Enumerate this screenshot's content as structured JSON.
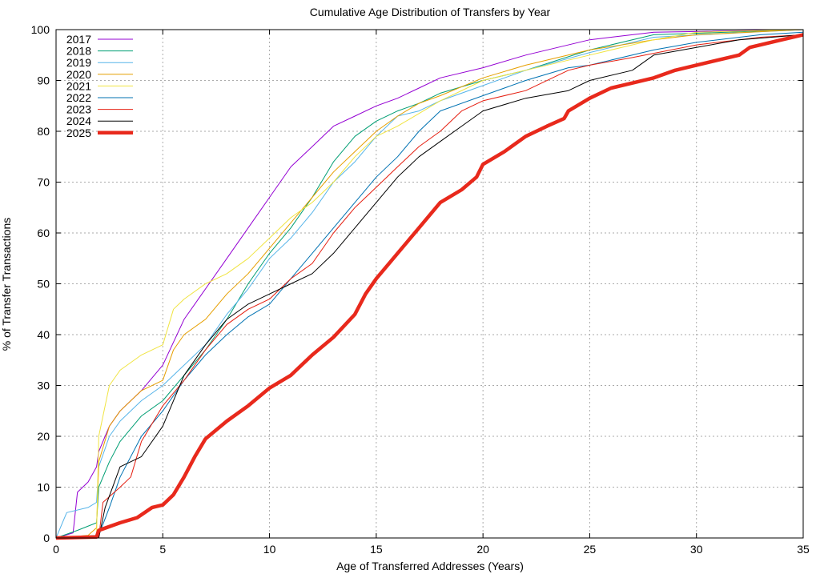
{
  "chart_data": {
    "type": "line",
    "title": "Cumulative Age Distribution of Transfers by Year",
    "xlabel": "Age of Transferred Addresses (Years)",
    "ylabel": "% of Transfer Transactions",
    "xlim": [
      0,
      35
    ],
    "ylim": [
      0,
      100
    ],
    "xticks": [
      0,
      5,
      10,
      15,
      20,
      25,
      30,
      35
    ],
    "yticks": [
      0,
      10,
      20,
      30,
      40,
      50,
      60,
      70,
      80,
      90,
      100
    ],
    "grid": true,
    "legend_position": "top-left",
    "series": [
      {
        "name": "2017",
        "color": "#9400d3",
        "width": 1,
        "x": [
          0,
          0.8,
          1.0,
          1.5,
          1.9,
          2,
          2.5,
          3,
          4,
          5,
          6,
          7,
          8,
          9,
          10,
          11,
          12,
          13,
          14,
          15,
          16,
          17,
          18,
          20,
          22,
          25,
          28,
          35
        ],
        "y": [
          0,
          1,
          9,
          11,
          14,
          17,
          22,
          25,
          29,
          34,
          43,
          49,
          55,
          61,
          67,
          73,
          77,
          81,
          83,
          85,
          86.5,
          88.5,
          90.5,
          92.5,
          95,
          98,
          99.5,
          100
        ]
      },
      {
        "name": "2018",
        "color": "#009e73",
        "width": 1,
        "x": [
          0,
          1,
          1.9,
          2,
          2.5,
          3,
          4,
          5,
          6,
          7,
          8,
          9,
          10,
          11,
          12,
          13,
          14,
          15,
          16,
          17,
          18,
          20,
          22,
          25,
          28,
          35
        ],
        "y": [
          0,
          1.5,
          3,
          10,
          15,
          19,
          24,
          27,
          32,
          37,
          43,
          50,
          56,
          61,
          67,
          74,
          79,
          82,
          84,
          85.5,
          87.5,
          90,
          92,
          96,
          99,
          100
        ]
      },
      {
        "name": "2019",
        "color": "#56b4e9",
        "width": 1,
        "x": [
          0,
          0.5,
          1.5,
          1.9,
          2,
          2.5,
          3,
          4,
          5,
          6,
          7,
          8,
          9,
          10,
          11,
          12,
          13,
          14,
          15,
          16,
          17,
          18,
          20,
          22,
          25,
          28,
          35
        ],
        "y": [
          0,
          5,
          6,
          7,
          14,
          20,
          23,
          27,
          30,
          34,
          38,
          44,
          49,
          55,
          59,
          64,
          70,
          74,
          79,
          83,
          84,
          86,
          89,
          92,
          95.5,
          98.5,
          100
        ]
      },
      {
        "name": "2020",
        "color": "#e69f00",
        "width": 1,
        "x": [
          0,
          1.5,
          1.9,
          2,
          2.5,
          3,
          4,
          5,
          5.5,
          6,
          7,
          8,
          9,
          10,
          11,
          12,
          13,
          14,
          15,
          16,
          17,
          18,
          20,
          22,
          25,
          28,
          30,
          35
        ],
        "y": [
          0,
          0.5,
          2,
          15,
          22,
          25,
          29,
          31,
          37,
          40,
          43,
          48,
          52,
          57,
          62,
          67,
          72,
          76,
          80,
          83,
          85.5,
          87,
          90.5,
          93,
          96,
          98,
          99,
          100
        ]
      },
      {
        "name": "2021",
        "color": "#f0e442",
        "width": 1,
        "x": [
          0,
          1.9,
          2,
          2.5,
          3,
          4,
          5,
          5.5,
          6,
          7,
          8,
          9,
          10,
          11,
          12,
          13,
          14,
          15,
          16,
          17,
          18,
          20,
          22,
          25,
          28,
          30,
          35
        ],
        "y": [
          0,
          0.5,
          20,
          30,
          33,
          36,
          38,
          45,
          47,
          50,
          52,
          55,
          59,
          63,
          66,
          70,
          75,
          79,
          81,
          83.5,
          86,
          90,
          92,
          95,
          98,
          99.5,
          100
        ]
      },
      {
        "name": "2022",
        "color": "#0072b2",
        "width": 1,
        "x": [
          0,
          2,
          2.5,
          3,
          4,
          5,
          6,
          7,
          8,
          9,
          10,
          11,
          12,
          13,
          14,
          15,
          16,
          17,
          18,
          20,
          22,
          24,
          25,
          28,
          30,
          33,
          35
        ],
        "y": [
          0,
          0.5,
          6,
          12,
          20,
          25,
          31,
          36,
          40,
          43.5,
          46,
          51,
          56,
          61,
          66,
          71,
          75,
          80,
          84,
          87,
          90,
          92.5,
          93,
          96,
          97.5,
          99,
          99.5
        ]
      },
      {
        "name": "2023",
        "color": "#e51e10",
        "width": 1,
        "x": [
          0,
          2,
          2.2,
          3,
          3.5,
          4,
          5,
          6,
          7,
          8,
          9,
          10,
          11,
          12,
          13,
          14,
          15,
          16,
          17,
          18,
          19,
          20,
          22,
          24,
          25,
          27,
          30,
          33,
          35
        ],
        "y": [
          0,
          0,
          7,
          10,
          12,
          19,
          26,
          31,
          37,
          42,
          45,
          47,
          51,
          54,
          60,
          65,
          69,
          73,
          77,
          80,
          84,
          86,
          88,
          92,
          93,
          94.5,
          97,
          98.5,
          99
        ]
      },
      {
        "name": "2024",
        "color": "#000000",
        "width": 1,
        "x": [
          0,
          2,
          2.3,
          3,
          4,
          5,
          6,
          7,
          8,
          9,
          10,
          11,
          12,
          13,
          14,
          15,
          16,
          17,
          18,
          19,
          20,
          22,
          24,
          25,
          27,
          28,
          30,
          32,
          35
        ],
        "y": [
          0,
          0,
          6,
          14,
          16,
          22,
          32,
          38,
          43,
          46,
          48,
          50,
          52,
          56,
          61,
          66,
          71,
          75,
          78,
          81,
          84,
          86.5,
          88,
          90,
          92,
          95,
          96.5,
          98,
          99
        ]
      },
      {
        "name": "2025",
        "color": "#e8291c",
        "width": 4.5,
        "x": [
          0,
          1.9,
          2,
          3,
          3.8,
          4.5,
          5,
          5.5,
          6,
          6.5,
          7,
          8,
          9,
          10,
          11,
          12,
          13,
          14,
          14.5,
          15,
          16,
          17,
          18,
          19,
          19.7,
          20,
          21,
          22,
          23,
          23.8,
          24,
          25,
          26,
          27,
          28,
          29,
          30,
          31,
          32,
          32.5,
          34,
          35
        ],
        "y": [
          0,
          0.2,
          1.5,
          3,
          4,
          6,
          6.5,
          8.5,
          12,
          16,
          19.5,
          23,
          26,
          29.5,
          32,
          36,
          39.5,
          44,
          48,
          51,
          56,
          61,
          66,
          68.5,
          71,
          73.5,
          76,
          79,
          81,
          82.5,
          84,
          86.5,
          88.5,
          89.5,
          90.5,
          92,
          93,
          94,
          95,
          96.5,
          98,
          99
        ]
      }
    ]
  }
}
